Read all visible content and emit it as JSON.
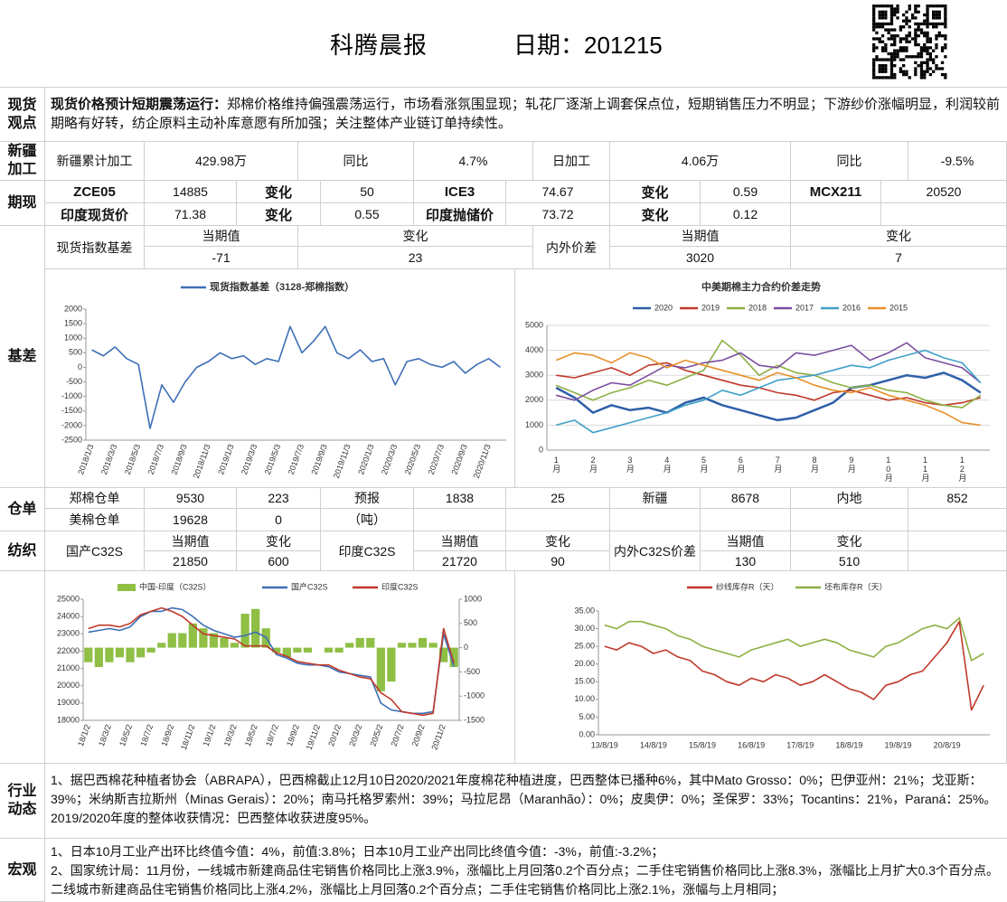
{
  "header": {
    "title": "科腾晨报",
    "date_label": "日期：201215"
  },
  "sections": [
    "现货观点",
    "新疆加工",
    "期现",
    "基差",
    "仓单",
    "纺织",
    "行业动态",
    "宏观"
  ],
  "spot_view": {
    "heading": "现货价格预计短期震荡运行：",
    "text": "郑棉价格维持偏强震荡运行，市场看涨氛围显现；轧花厂逐渐上调套保点位，短期销售压力不明显；下游纱价涨幅明显，利润较前期略有好转，纺企原料主动补库意愿有所加强；关注整体产业链订单持续性。"
  },
  "xinjiang": [
    "新疆累计加工",
    "429.98万",
    "同比",
    "4.7%",
    "日加工",
    "4.06万",
    "同比",
    "-9.5%"
  ],
  "futures": {
    "rows": [
      [
        "ZCE05",
        14885,
        "变化",
        50,
        "ICE3",
        74.67,
        "变化",
        0.59,
        "MCX211",
        20520
      ],
      [
        "印度现货价",
        71.38,
        "变化",
        0.55,
        "印度抛储价",
        73.72,
        "变化",
        0.12
      ]
    ]
  },
  "basis": {
    "rows": [
      [
        "现货指数基差",
        "当期值",
        "变化",
        "内外价差",
        "当期值",
        "变化"
      ],
      [
        -71,
        23,
        3020,
        7
      ]
    ]
  },
  "warehouse": {
    "rows": [
      [
        "郑棉仓单",
        9530,
        223,
        "预报",
        1838,
        25,
        "新疆",
        8678,
        "内地",
        852
      ],
      [
        "美棉仓单",
        19628,
        0,
        "（吨）"
      ]
    ]
  },
  "textile": {
    "rows": [
      [
        "国产C32S",
        "当期值",
        "变化",
        "印度C32S",
        "当期值",
        "变化",
        "内外C32S价差",
        "当期值",
        "变化"
      ],
      [
        21850,
        600,
        21720,
        90,
        130,
        510
      ]
    ]
  },
  "industry": "1、据巴西棉花种植者协会（ABRAPA），巴西棉截止12月10日2020/2021年度棉花种植进度，巴西整体已播种6%，其中Mato Grosso：0%；巴伊亚州：21%；戈亚斯：39%；米纳斯吉拉斯州（Minas Gerais）：20%；南马托格罗索州：39%；马拉尼昂（Maranhão）：0%；皮奥伊：0%；圣保罗：33%；Tocantins：21%，Paraná：25%。2019/2020年度的整体收获情况：巴西整体收获进度95%。",
  "macro": [
    "1、日本10月工业产出环比终值今值：4%，前值:3.8%；日本10月工业产出同比终值今值：-3%，前值:-3.2%；",
    "2、国家统计局：11月份，一线城市新建商品住宅销售价格同比上涨3.9%，涨幅比上月回落0.2个百分点；二手住宅销售价格同比上涨8.3%，涨幅比上月扩大0.3个百分点。二线城市新建商品住宅销售价格同比上涨4.2%，涨幅比上月回落0.2个百分点；二手住宅销售价格同比上涨2.1%，涨幅与上月相同；"
  ],
  "chart_data": [
    {
      "type": "line",
      "grid": false,
      "xrot": true,
      "categories": [
        "2018/1/3",
        null,
        "2018/3/3",
        null,
        "2018/5/3",
        null,
        "2018/7/3",
        null,
        "2018/9/3",
        null,
        "2018/11/3",
        null,
        "2019/1/3",
        null,
        "2019/3/3",
        null,
        "2019/5/3",
        null,
        "2019/7/3",
        null,
        "2019/9/3",
        null,
        "2019/11/3",
        null,
        "2020/1/3",
        null,
        "2020/3/3",
        null,
        "2020/5/3",
        null,
        "2020/7/3",
        null,
        "2020/9/3",
        null,
        "2020/11/3",
        null
      ],
      "series": [
        {
          "name": "现货指数基差（3128-郑棉指数）",
          "color": "#3d6fb6",
          "values": [
            600,
            400,
            700,
            300,
            100,
            -2100,
            -600,
            -1200,
            -500,
            0,
            200,
            500,
            300,
            400,
            100,
            300,
            200,
            1400,
            500,
            900,
            1400,
            500,
            300,
            600,
            200,
            300,
            -600,
            200,
            300,
            100,
            0,
            200,
            -200,
            100,
            300,
            0
          ]
        }
      ],
      "ylim": [
        -2500,
        2000
      ],
      "yticks": [
        -2500,
        -2000,
        -1500,
        -1000,
        -500,
        0,
        500,
        1000,
        1500,
        2000
      ]
    },
    {
      "type": "line",
      "title": "中美期棉主力合约价差走势",
      "grid": true,
      "vertical_labels": true,
      "categories": [
        "1月",
        null,
        "2月",
        null,
        "3月",
        null,
        "4月",
        null,
        "5月",
        null,
        "6月",
        null,
        "7月",
        null,
        "8月",
        null,
        "9月",
        null,
        "10月",
        null,
        "11月",
        null,
        "12月",
        null
      ],
      "series": [
        {
          "name": "2020",
          "color": "#2e5fa8",
          "values": [
            2500,
            2100,
            1500,
            1800,
            1600,
            1700,
            1500,
            1900,
            2100,
            1800,
            1600,
            1400,
            1200,
            1300,
            1600,
            1900,
            2500,
            2600,
            2800,
            3000,
            2900,
            3100,
            2800,
            2300
          ]
        },
        {
          "name": "2019",
          "color": "#c0392b",
          "values": [
            3000,
            2900,
            3100,
            3300,
            3000,
            3400,
            3500,
            3200,
            3000,
            2800,
            2600,
            2500,
            2300,
            2200,
            2000,
            2300,
            2400,
            2200,
            2000,
            2100,
            1900,
            1800,
            1900,
            2100
          ]
        },
        {
          "name": "2018",
          "color": "#8db043",
          "values": [
            2600,
            2300,
            2000,
            2300,
            2500,
            2800,
            2600,
            2900,
            3200,
            4400,
            3800,
            3000,
            3400,
            3100,
            3000,
            2700,
            2500,
            2600,
            2400,
            2300,
            2000,
            1800,
            1700,
            2200
          ]
        },
        {
          "name": "2017",
          "color": "#7b4fa0",
          "values": [
            2200,
            2000,
            2400,
            2700,
            2600,
            3000,
            3400,
            3300,
            3500,
            3600,
            3900,
            3400,
            3300,
            3900,
            3800,
            4000,
            4200,
            3600,
            3900,
            4300,
            3700,
            3500,
            3300,
            2700
          ]
        },
        {
          "name": "2016",
          "color": "#3fa0c8",
          "values": [
            1000,
            1200,
            700,
            900,
            1100,
            1300,
            1500,
            1800,
            2000,
            2400,
            2200,
            2500,
            2800,
            2900,
            3000,
            3200,
            3400,
            3300,
            3600,
            3800,
            4000,
            3700,
            3500,
            2700
          ]
        },
        {
          "name": "2015",
          "color": "#e8902a",
          "values": [
            3600,
            3900,
            3800,
            3500,
            3900,
            3700,
            3300,
            3600,
            3400,
            3200,
            3000,
            2800,
            3100,
            2900,
            2600,
            2400,
            2300,
            2500,
            2200,
            2000,
            1800,
            1500,
            1100,
            1000
          ]
        }
      ],
      "ylim": [
        0,
        5000
      ],
      "yticks": [
        0,
        1000,
        2000,
        3000,
        4000,
        5000
      ]
    },
    {
      "type": "line",
      "grid": false,
      "xrot": true,
      "categories": [
        "18/1/2",
        null,
        "18/3/2",
        null,
        "18/5/2",
        null,
        "18/7/2",
        null,
        "18/9/2",
        null,
        "18/11/2",
        null,
        "19/1/2",
        null,
        "19/3/2",
        null,
        "19/5/2",
        null,
        "19/7/2",
        null,
        "19/9/2",
        null,
        "19/11/2",
        null,
        "20/1/2",
        null,
        "20/3/2",
        null,
        "20/5/2",
        null,
        "20/7/2",
        null,
        "20/9/2",
        null,
        "20/11/2",
        null
      ],
      "series": [
        {
          "name": "中国-印度（C32S）",
          "color": "#8fbf45",
          "type": "bar",
          "axis": "y2",
          "values": [
            -300,
            -400,
            -300,
            -200,
            -300,
            -200,
            -100,
            100,
            300,
            300,
            500,
            400,
            300,
            200,
            100,
            700,
            800,
            400,
            -100,
            -200,
            -100,
            -100,
            0,
            -100,
            -100,
            100,
            200,
            200,
            -900,
            -700,
            100,
            100,
            200,
            100,
            -300,
            -400
          ]
        },
        {
          "name": "国产C32S",
          "color": "#3d6fb6",
          "values": [
            23100,
            23200,
            23300,
            23200,
            23400,
            24000,
            24300,
            24300,
            24500,
            24400,
            24000,
            23500,
            23200,
            23000,
            22800,
            22900,
            23100,
            22800,
            21800,
            21600,
            21300,
            21200,
            21200,
            21100,
            20800,
            20700,
            20600,
            20500,
            19000,
            18600,
            18500,
            18400,
            18400,
            18500,
            23000,
            21100
          ]
        },
        {
          "name": "印度C32S",
          "color": "#c0392b",
          "values": [
            23300,
            23500,
            23500,
            23400,
            23600,
            24100,
            24300,
            24500,
            24300,
            24000,
            23500,
            23000,
            22900,
            22800,
            22700,
            22300,
            22300,
            22300,
            21900,
            21700,
            21400,
            21300,
            21200,
            21200,
            20900,
            20700,
            20500,
            20400,
            19600,
            19200,
            18500,
            18400,
            18300,
            18400,
            23300,
            21300
          ]
        }
      ],
      "ylim": [
        18000,
        25000
      ],
      "yticks": [
        18000,
        19000,
        20000,
        21000,
        22000,
        23000,
        24000,
        25000
      ],
      "y2lim": [
        -1500,
        1000
      ],
      "y2ticks": [
        -1500,
        -1000,
        -500,
        0,
        500,
        1000
      ]
    },
    {
      "type": "line",
      "grid": false,
      "categories": [
        "13/8/19",
        null,
        null,
        null,
        "14/8/19",
        null,
        null,
        null,
        "15/8/19",
        null,
        null,
        null,
        "16/8/19",
        null,
        null,
        null,
        "17/8/19",
        null,
        null,
        null,
        "18/8/19",
        null,
        null,
        null,
        "19/8/19",
        null,
        null,
        null,
        "20/8/19",
        null,
        null,
        null
      ],
      "series": [
        {
          "name": "纱线库存R（天）",
          "color": "#c0392b",
          "values": [
            25,
            24,
            26,
            25,
            23,
            24,
            22,
            21,
            18,
            17,
            15,
            14,
            16,
            15,
            17,
            16,
            14,
            15,
            17,
            15,
            13,
            12,
            10,
            14,
            15,
            17,
            18,
            22,
            26,
            32,
            7,
            14
          ]
        },
        {
          "name": "坯布库存R（天）",
          "color": "#8db043",
          "values": [
            31,
            30,
            32,
            32,
            31,
            30,
            28,
            27,
            25,
            24,
            23,
            22,
            24,
            25,
            26,
            27,
            25,
            26,
            27,
            26,
            24,
            23,
            22,
            25,
            26,
            28,
            30,
            31,
            30,
            33,
            21,
            23
          ]
        }
      ],
      "ylim": [
        0,
        35
      ],
      "yticks": [
        {
          "value": 0,
          "label": "0.00"
        },
        {
          "value": 5,
          "label": "5.00"
        },
        {
          "value": 10,
          "label": "10.00"
        },
        {
          "value": 15,
          "label": "15.00"
        },
        {
          "value": 20,
          "label": "20.00"
        },
        {
          "value": 25,
          "label": "25.00"
        },
        {
          "value": 30,
          "label": "30.00"
        },
        {
          "value": 35,
          "label": "35.00"
        }
      ]
    }
  ]
}
